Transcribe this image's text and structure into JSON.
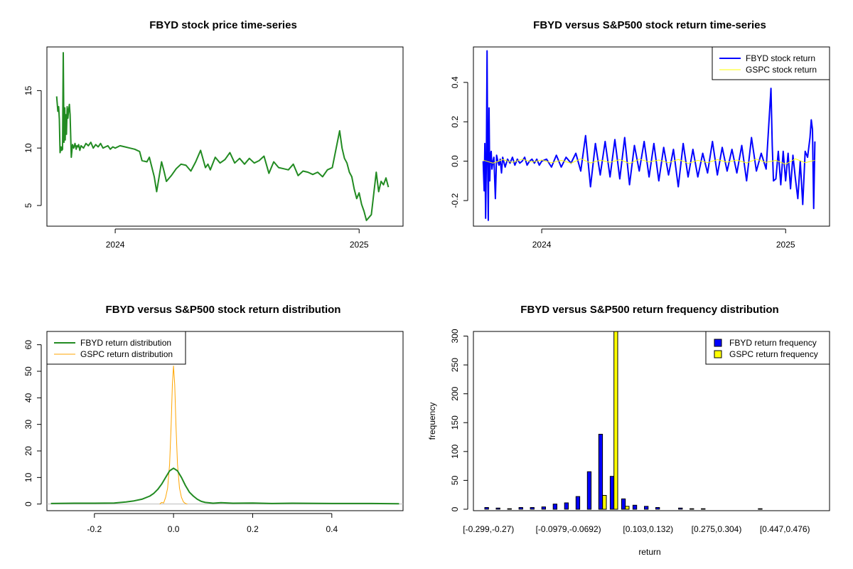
{
  "colors": {
    "fbyd_price": "#228B22",
    "fbyd_return": "#0000FF",
    "gspc_return": "#FFFF00",
    "fbyd_density": "#228B22",
    "gspc_density": "#FFA500",
    "fbyd_hist": "#0000FF",
    "gspc_hist": "#FFFF00"
  },
  "panel1": {
    "title": "FBYD stock price time-series",
    "x_ticks": [
      {
        "value": 0,
        "label": "2024"
      },
      {
        "value": 1,
        "label": "2025"
      }
    ],
    "y_ticks": [
      5,
      10,
      15
    ],
    "ylim": [
      3.2,
      18.8
    ],
    "xlim": [
      -0.28,
      1.18
    ],
    "chart_data": {
      "type": "line",
      "series": [
        {
          "x": [
            -0.24,
            -0.235,
            -0.232,
            -0.229,
            -0.226,
            -0.222,
            -0.219,
            -0.216,
            -0.213,
            -0.21,
            -0.207,
            -0.205,
            -0.203,
            -0.2,
            -0.197,
            -0.194,
            -0.191,
            -0.188,
            -0.185,
            -0.18,
            -0.175,
            -0.17,
            -0.165,
            -0.16,
            -0.157,
            -0.153,
            -0.15,
            -0.145,
            -0.14,
            -0.13,
            -0.12,
            -0.11,
            -0.1,
            -0.09,
            -0.08,
            -0.07,
            -0.06,
            -0.05,
            -0.04,
            -0.03,
            -0.02,
            -0.01,
            0,
            0.02,
            0.04,
            0.06,
            0.08,
            0.1,
            0.11,
            0.13,
            0.14,
            0.16,
            0.17,
            0.19,
            0.2,
            0.21,
            0.23,
            0.25,
            0.27,
            0.29,
            0.31,
            0.33,
            0.35,
            0.37,
            0.38,
            0.39,
            0.41,
            0.43,
            0.45,
            0.47,
            0.49,
            0.51,
            0.53,
            0.55,
            0.57,
            0.59,
            0.61,
            0.63,
            0.65,
            0.67,
            0.69,
            0.71,
            0.73,
            0.75,
            0.77,
            0.79,
            0.81,
            0.83,
            0.85,
            0.87,
            0.89,
            0.92,
            0.93,
            0.94,
            0.95,
            0.96,
            0.97,
            0.98,
            0.99,
            1.0,
            1.01,
            1.02,
            1.03,
            1.05,
            1.07,
            1.08,
            1.09,
            1.1,
            1.11,
            1.12
          ],
          "y": [
            14.5,
            13.2,
            13.6,
            12.5,
            9.6,
            10.1,
            9.8,
            9.9,
            18.3,
            10.5,
            13.5,
            10.7,
            12.9,
            11.2,
            13.6,
            12.6,
            13.3,
            13.8,
            12.9,
            9.2,
            10.3,
            10.0,
            10.4,
            9.9,
            10.2,
            10.1,
            10.3,
            9.8,
            10.2,
            10.0,
            10.4,
            10.2,
            10.5,
            10.0,
            10.3,
            10.1,
            10.4,
            10.0,
            10.1,
            10.2,
            9.9,
            10.1,
            10.0,
            10.2,
            10.1,
            10.0,
            9.9,
            9.7,
            8.9,
            8.8,
            9.2,
            7.5,
            6.2,
            8.8,
            8.0,
            7.1,
            7.6,
            8.2,
            8.6,
            8.5,
            8.0,
            8.8,
            9.8,
            8.3,
            8.6,
            8.1,
            9.2,
            8.7,
            9.0,
            9.6,
            8.7,
            9.1,
            8.6,
            9.1,
            8.7,
            8.9,
            9.3,
            7.8,
            8.8,
            8.3,
            8.2,
            8.1,
            8.6,
            7.6,
            8.0,
            7.9,
            7.7,
            7.9,
            7.5,
            8.1,
            8.3,
            11.5,
            10.0,
            9.1,
            8.7,
            7.9,
            7.5,
            6.4,
            5.6,
            6.1,
            5.1,
            4.5,
            3.7,
            4.2,
            7.9,
            6.2,
            7.1,
            6.8,
            7.4,
            6.6
          ]
        }
      ]
    }
  },
  "panel2": {
    "title": "FBYD versus S&P500 stock return time-series",
    "x_ticks": [
      {
        "value": 0,
        "label": "2024"
      },
      {
        "value": 1,
        "label": "2025"
      }
    ],
    "y_ticks": [
      -0.2,
      0.0,
      0.2,
      0.4
    ],
    "ylim": [
      -0.33,
      0.58
    ],
    "xlim": [
      -0.28,
      1.18
    ],
    "legend": [
      {
        "label": "FBYD stock return",
        "key": "fbyd_return"
      },
      {
        "label": "GSPC stock return",
        "key": "gspc_return"
      }
    ],
    "chart_data": {
      "type": "line",
      "series": [
        {
          "name": "FBYD stock return",
          "x": [
            -0.24,
            -0.236,
            -0.233,
            -0.23,
            -0.227,
            -0.224,
            -0.221,
            -0.219,
            -0.216,
            -0.213,
            -0.21,
            -0.207,
            -0.204,
            -0.2,
            -0.196,
            -0.19,
            -0.185,
            -0.18,
            -0.175,
            -0.17,
            -0.165,
            -0.16,
            -0.15,
            -0.14,
            -0.13,
            -0.12,
            -0.11,
            -0.1,
            -0.09,
            -0.08,
            -0.07,
            -0.06,
            -0.05,
            -0.04,
            -0.03,
            -0.02,
            -0.01,
            0.0,
            0.02,
            0.04,
            0.06,
            0.08,
            0.1,
            0.12,
            0.14,
            0.16,
            0.18,
            0.2,
            0.22,
            0.24,
            0.26,
            0.28,
            0.3,
            0.32,
            0.34,
            0.36,
            0.38,
            0.4,
            0.42,
            0.44,
            0.46,
            0.48,
            0.5,
            0.52,
            0.54,
            0.56,
            0.58,
            0.6,
            0.62,
            0.64,
            0.66,
            0.68,
            0.7,
            0.72,
            0.74,
            0.76,
            0.78,
            0.8,
            0.82,
            0.84,
            0.86,
            0.88,
            0.9,
            0.92,
            0.94,
            0.945,
            0.95,
            0.96,
            0.97,
            0.98,
            0.99,
            1.0,
            1.01,
            1.02,
            1.03,
            1.04,
            1.05,
            1.06,
            1.07,
            1.08,
            1.09,
            1.1,
            1.105,
            1.11,
            1.115,
            1.12
          ],
          "y": [
            0.0,
            -0.15,
            0.09,
            -0.29,
            0.0,
            0.56,
            -0.05,
            -0.3,
            0.27,
            -0.1,
            0.03,
            0.05,
            -0.04,
            0.0,
            0.02,
            -0.19,
            0.03,
            0.0,
            -0.02,
            0.01,
            -0.06,
            0.02,
            -0.03,
            0.01,
            -0.01,
            0.02,
            -0.02,
            0.01,
            -0.01,
            0.0,
            0.02,
            -0.02,
            0.0,
            0.01,
            -0.01,
            0.01,
            -0.02,
            0.0,
            0.01,
            -0.03,
            0.03,
            -0.03,
            0.02,
            -0.01,
            0.04,
            -0.05,
            0.13,
            -0.13,
            0.09,
            -0.07,
            0.1,
            -0.08,
            0.11,
            -0.09,
            0.12,
            -0.12,
            0.08,
            -0.05,
            0.1,
            -0.08,
            0.09,
            -0.1,
            0.07,
            -0.07,
            0.06,
            -0.13,
            0.09,
            -0.08,
            0.06,
            -0.08,
            0.04,
            -0.06,
            0.1,
            -0.07,
            0.07,
            -0.05,
            0.06,
            -0.06,
            0.08,
            -0.1,
            0.12,
            -0.05,
            0.04,
            -0.04,
            0.37,
            0.08,
            -0.1,
            -0.09,
            0.05,
            -0.12,
            0.05,
            -0.1,
            0.04,
            -0.14,
            0.03,
            -0.09,
            -0.19,
            0.0,
            -0.22,
            0.05,
            0.02,
            0.12,
            0.21,
            0.16,
            -0.24,
            0.1
          ]
        },
        {
          "name": "GSPC stock return",
          "x": [
            -0.24,
            -0.2,
            -0.16,
            -0.12,
            -0.08,
            -0.04,
            0.0,
            0.04,
            0.08,
            0.12,
            0.16,
            0.2,
            0.24,
            0.28,
            0.32,
            0.36,
            0.4,
            0.44,
            0.48,
            0.52,
            0.56,
            0.6,
            0.64,
            0.68,
            0.72,
            0.76,
            0.8,
            0.84,
            0.88,
            0.92,
            0.96,
            1.0,
            1.04,
            1.08,
            1.12
          ],
          "y": [
            0.005,
            -0.01,
            0.008,
            -0.006,
            0.01,
            -0.004,
            0.006,
            -0.008,
            0.004,
            -0.01,
            0.012,
            -0.009,
            0.005,
            -0.006,
            0.008,
            -0.012,
            0.01,
            -0.004,
            0.006,
            -0.008,
            0.009,
            -0.011,
            0.004,
            -0.007,
            0.008,
            -0.005,
            0.006,
            -0.009,
            0.01,
            -0.006,
            0.004,
            -0.015,
            0.012,
            -0.008,
            0.005
          ]
        }
      ]
    }
  },
  "panel3": {
    "title": "FBYD versus S&P500 stock return distribution",
    "x_ticks": [
      -0.2,
      0.0,
      0.2,
      0.4
    ],
    "y_ticks": [
      0,
      10,
      20,
      30,
      40,
      50,
      60
    ],
    "xlim": [
      -0.32,
      0.58
    ],
    "ylim": [
      -2.5,
      65
    ],
    "legend": [
      {
        "label": "FBYD return distribution",
        "key": "fbyd_density"
      },
      {
        "label": "GSPC return distribution",
        "key": "gspc_density"
      }
    ],
    "chart_data": {
      "type": "line",
      "series": [
        {
          "name": "FBYD return distribution",
          "x": [
            -0.31,
            -0.25,
            -0.2,
            -0.15,
            -0.12,
            -0.1,
            -0.08,
            -0.06,
            -0.05,
            -0.04,
            -0.03,
            -0.02,
            -0.01,
            0.0,
            0.01,
            0.02,
            0.03,
            0.04,
            0.05,
            0.06,
            0.07,
            0.08,
            0.1,
            0.12,
            0.15,
            0.2,
            0.25,
            0.3,
            0.4,
            0.5,
            0.57
          ],
          "y": [
            0.2,
            0.3,
            0.3,
            0.4,
            0.8,
            1.2,
            1.8,
            3.0,
            4.0,
            5.5,
            7.5,
            10.0,
            12.5,
            13.5,
            12.5,
            10.0,
            7.0,
            4.5,
            3.0,
            1.8,
            1.0,
            0.6,
            0.3,
            0.5,
            0.3,
            0.4,
            0.2,
            0.3,
            0.2,
            0.2,
            0.1
          ]
        },
        {
          "name": "GSPC return distribution",
          "x": [
            -0.035,
            -0.03,
            -0.025,
            -0.02,
            -0.015,
            -0.01,
            -0.006,
            -0.003,
            0.0,
            0.003,
            0.006,
            0.01,
            0.015,
            0.02,
            0.025,
            0.03,
            0.035
          ],
          "y": [
            0.0,
            0.6,
            0.4,
            2.5,
            6.0,
            15.0,
            30.0,
            45.0,
            52.0,
            45.0,
            30.0,
            15.0,
            6.0,
            2.5,
            0.8,
            0.2,
            0.0
          ]
        }
      ]
    }
  },
  "panel4": {
    "title": "FBYD versus S&P500 return frequency distribution",
    "ylabel": "frequency",
    "xlabel": "return",
    "y_ticks": [
      0,
      50,
      100,
      150,
      200,
      250,
      300
    ],
    "ylim": [
      -2.5,
      308
    ],
    "legend": [
      {
        "label": "FBYD return frequency",
        "key": "fbyd_hist"
      },
      {
        "label": "GSPC return frequency",
        "key": "gspc_hist"
      }
    ],
    "shown_category_labels": [
      {
        "index": 0,
        "label": "[-0.299,-0.27)"
      },
      {
        "index": 7,
        "label": "[-0.0979,-0.0692)"
      },
      {
        "index": 14,
        "label": "[0.103,0.132)"
      },
      {
        "index": 20,
        "label": "[0.275,0.304)"
      },
      {
        "index": 26,
        "label": "[0.447,0.476)"
      }
    ],
    "chart_data": {
      "type": "bar",
      "n_categories": 30,
      "series": [
        {
          "name": "FBYD return frequency",
          "values": [
            3,
            2,
            1,
            3,
            3,
            4,
            9,
            11,
            22,
            65,
            130,
            57,
            18,
            7,
            5,
            3,
            0,
            2,
            1,
            1,
            0,
            0,
            0,
            0,
            1,
            0,
            0,
            0,
            0,
            0
          ]
        },
        {
          "name": "GSPC return frequency",
          "values": [
            0,
            0,
            0,
            0,
            0,
            0,
            0,
            0,
            0,
            0,
            24,
            310,
            5,
            0,
            0,
            0,
            0,
            0,
            0,
            0,
            0,
            0,
            0,
            0,
            0,
            0,
            0,
            0,
            0,
            0
          ]
        }
      ]
    }
  }
}
